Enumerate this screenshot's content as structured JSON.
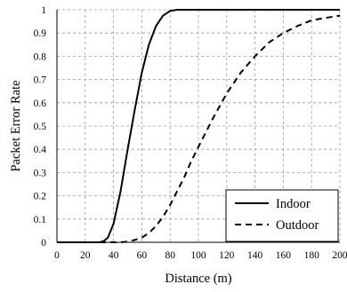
{
  "chart_data": {
    "type": "line",
    "title": "",
    "xlabel": "Distance (m)",
    "ylabel": "Packet Error Rate",
    "xlim": [
      0,
      200
    ],
    "ylim": [
      0,
      1
    ],
    "x_ticks": [
      "0",
      "20",
      "40",
      "60",
      "80",
      "100",
      "120",
      "140",
      "160",
      "180",
      "200"
    ],
    "y_ticks": [
      "0",
      "0.1",
      "0.2",
      "0.3",
      "0.4",
      "0.5",
      "0.6",
      "0.7",
      "0.8",
      "0.9",
      "1"
    ],
    "grid": "dashed",
    "legend_position": "bottom-right",
    "series": [
      {
        "name": "Indoor",
        "line_style": "solid",
        "color": "#000000",
        "x": [
          0,
          25,
          30,
          33,
          36,
          40,
          45,
          50,
          55,
          60,
          65,
          70,
          75,
          80,
          85,
          90,
          100,
          120,
          140,
          160,
          180,
          200
        ],
        "y": [
          0,
          0,
          0,
          0.005,
          0.02,
          0.08,
          0.22,
          0.4,
          0.57,
          0.73,
          0.85,
          0.93,
          0.975,
          0.995,
          1.0,
          1.0,
          1.0,
          1.0,
          1.0,
          1.0,
          1.0,
          1.0
        ]
      },
      {
        "name": "Outdoor",
        "line_style": "dashed",
        "color": "#000000",
        "x": [
          0,
          45,
          50,
          55,
          60,
          65,
          70,
          75,
          80,
          85,
          90,
          95,
          100,
          105,
          110,
          120,
          130,
          140,
          150,
          160,
          170,
          180,
          190,
          200
        ],
        "y": [
          0,
          0,
          0.003,
          0.01,
          0.02,
          0.04,
          0.07,
          0.11,
          0.16,
          0.22,
          0.28,
          0.35,
          0.41,
          0.47,
          0.53,
          0.64,
          0.73,
          0.8,
          0.86,
          0.9,
          0.93,
          0.955,
          0.965,
          0.975
        ]
      }
    ]
  }
}
